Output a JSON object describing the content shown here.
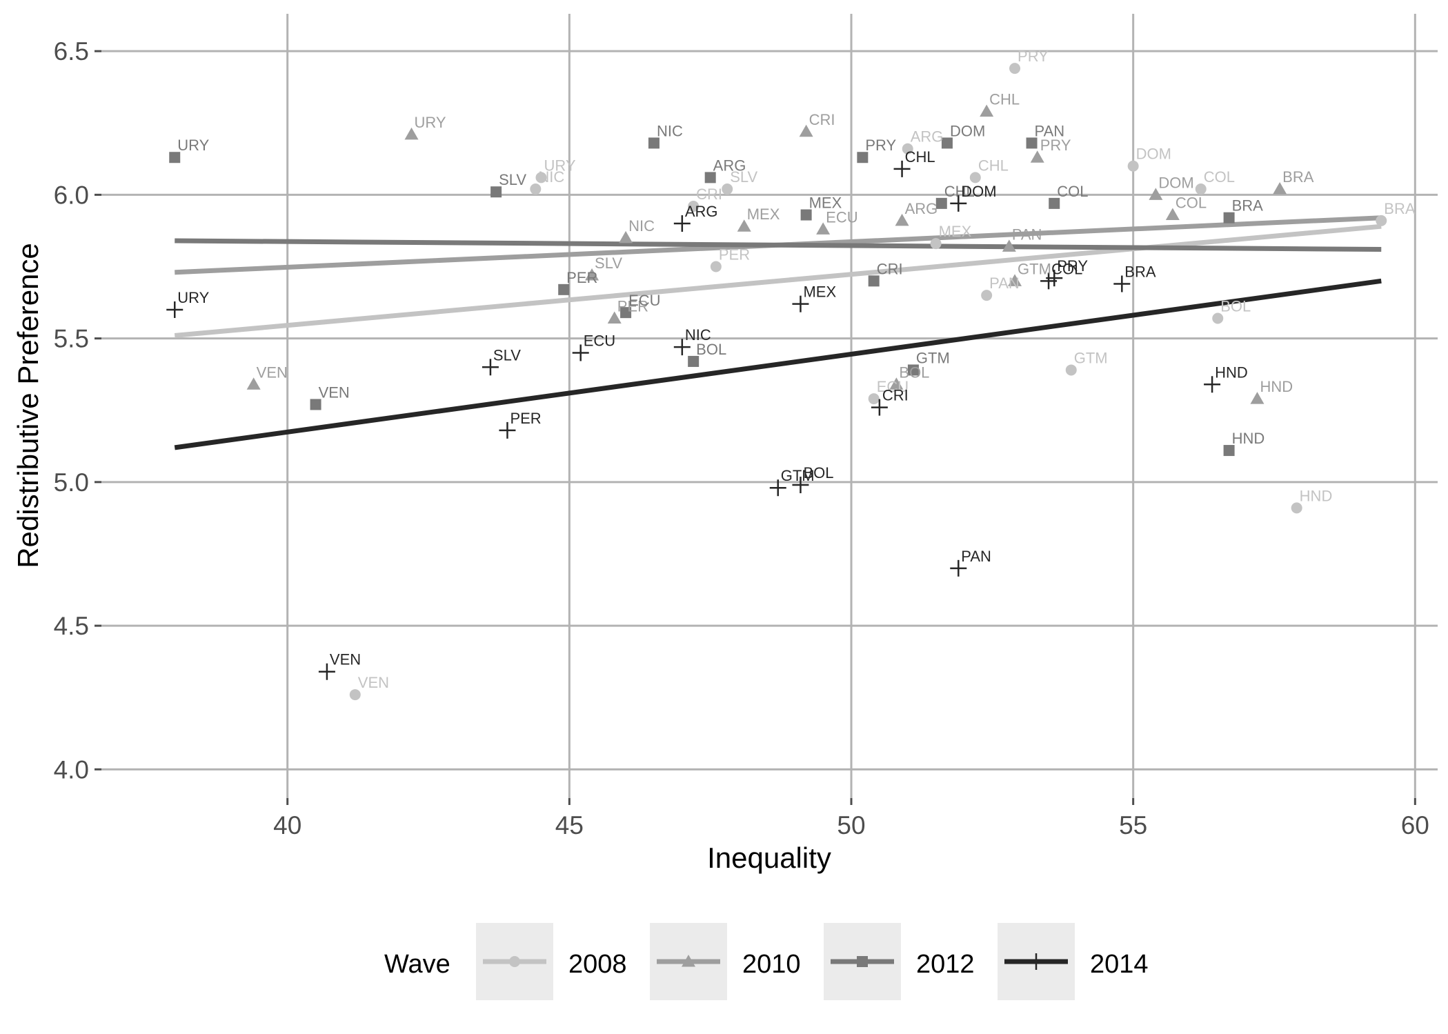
{
  "chart_data": {
    "type": "scatter",
    "xlabel": "Inequality",
    "ylabel": "Redistributive Preference",
    "xlim": [
      36.7,
      60.4
    ],
    "ylim": [
      3.9,
      6.63
    ],
    "x_ticks": [
      40,
      45,
      50,
      55,
      60
    ],
    "y_ticks": [
      4.0,
      4.5,
      5.0,
      5.5,
      6.0,
      6.5
    ],
    "y_tick_labels": [
      "4.0",
      "4.5",
      "5.0",
      "5.5",
      "6.0",
      "6.5"
    ],
    "grid": true,
    "legend": {
      "title": "Wave",
      "position": "bottom"
    },
    "series": [
      {
        "name": "2008",
        "marker": "circle",
        "color": "#c3c3c3",
        "fit_line": [
          [
            38,
            5.51
          ],
          [
            59.4,
            5.89
          ]
        ],
        "points": [
          {
            "label": "PRY",
            "x": 52.9,
            "y": 6.44
          },
          {
            "label": "ARG",
            "x": 51.0,
            "y": 6.16
          },
          {
            "label": "URY",
            "x": 44.5,
            "y": 6.06
          },
          {
            "label": "NIC",
            "x": 44.4,
            "y": 6.02
          },
          {
            "label": "SLV",
            "x": 47.8,
            "y": 6.02
          },
          {
            "label": "CHL",
            "x": 52.2,
            "y": 6.06
          },
          {
            "label": "DOM",
            "x": 55.0,
            "y": 6.1
          },
          {
            "label": "COL",
            "x": 56.2,
            "y": 6.02
          },
          {
            "label": "BRA",
            "x": 59.4,
            "y": 5.91
          },
          {
            "label": "CRI",
            "x": 47.2,
            "y": 5.96
          },
          {
            "label": "MEX",
            "x": 51.5,
            "y": 5.83
          },
          {
            "label": "PAN",
            "x": 52.4,
            "y": 5.65
          },
          {
            "label": "PER",
            "x": 47.6,
            "y": 5.75
          },
          {
            "label": "BOL",
            "x": 56.5,
            "y": 5.57
          },
          {
            "label": "GTM",
            "x": 53.9,
            "y": 5.39
          },
          {
            "label": "ECU",
            "x": 50.4,
            "y": 5.29
          },
          {
            "label": "HND",
            "x": 57.9,
            "y": 4.91
          },
          {
            "label": "VEN",
            "x": 41.2,
            "y": 4.26
          }
        ]
      },
      {
        "name": "2010",
        "marker": "triangle",
        "color": "#9e9e9e",
        "fit_line": [
          [
            38,
            5.73
          ],
          [
            59.4,
            5.92
          ]
        ],
        "points": [
          {
            "label": "URY",
            "x": 42.2,
            "y": 6.21
          },
          {
            "label": "CRI",
            "x": 49.2,
            "y": 6.22
          },
          {
            "label": "CHL",
            "x": 52.4,
            "y": 6.29
          },
          {
            "label": "PRY",
            "x": 53.3,
            "y": 6.13
          },
          {
            "label": "DOM",
            "x": 55.4,
            "y": 6.0
          },
          {
            "label": "BRA",
            "x": 57.6,
            "y": 6.02
          },
          {
            "label": "COL",
            "x": 55.7,
            "y": 5.93
          },
          {
            "label": "NIC",
            "x": 46.0,
            "y": 5.85
          },
          {
            "label": "MEX",
            "x": 48.1,
            "y": 5.89
          },
          {
            "label": "ECU",
            "x": 49.5,
            "y": 5.88
          },
          {
            "label": "ARG",
            "x": 50.9,
            "y": 5.91
          },
          {
            "label": "PAN",
            "x": 52.8,
            "y": 5.82
          },
          {
            "label": "GTM",
            "x": 52.9,
            "y": 5.7
          },
          {
            "label": "SLV",
            "x": 45.4,
            "y": 5.72
          },
          {
            "label": "PER",
            "x": 45.8,
            "y": 5.57
          },
          {
            "label": "BOL",
            "x": 50.8,
            "y": 5.34
          },
          {
            "label": "VEN",
            "x": 39.4,
            "y": 5.34
          },
          {
            "label": "HND",
            "x": 57.2,
            "y": 5.29
          }
        ]
      },
      {
        "name": "2012",
        "marker": "square",
        "color": "#797979",
        "fit_line": [
          [
            38,
            5.84
          ],
          [
            59.4,
            5.81
          ]
        ],
        "points": [
          {
            "label": "URY",
            "x": 38.0,
            "y": 6.13
          },
          {
            "label": "NIC",
            "x": 46.5,
            "y": 6.18
          },
          {
            "label": "PRY",
            "x": 50.2,
            "y": 6.13
          },
          {
            "label": "DOM",
            "x": 51.7,
            "y": 6.18
          },
          {
            "label": "PAN",
            "x": 53.2,
            "y": 6.18
          },
          {
            "label": "ARG",
            "x": 47.5,
            "y": 6.06
          },
          {
            "label": "SLV",
            "x": 43.7,
            "y": 6.01
          },
          {
            "label": "CHL",
            "x": 51.6,
            "y": 5.97
          },
          {
            "label": "COL",
            "x": 53.6,
            "y": 5.97
          },
          {
            "label": "MEX",
            "x": 49.2,
            "y": 5.93
          },
          {
            "label": "BRA",
            "x": 56.7,
            "y": 5.92
          },
          {
            "label": "PER",
            "x": 44.9,
            "y": 5.67
          },
          {
            "label": "CRI",
            "x": 50.4,
            "y": 5.7
          },
          {
            "label": "ECU",
            "x": 46.0,
            "y": 5.59
          },
          {
            "label": "BOL",
            "x": 47.2,
            "y": 5.42
          },
          {
            "label": "GTM",
            "x": 51.1,
            "y": 5.39
          },
          {
            "label": "VEN",
            "x": 40.5,
            "y": 5.27
          },
          {
            "label": "HND",
            "x": 56.7,
            "y": 5.11
          }
        ]
      },
      {
        "name": "2014",
        "marker": "plus",
        "color": "#262626",
        "fit_line": [
          [
            38,
            5.12
          ],
          [
            59.4,
            5.7
          ]
        ],
        "points": [
          {
            "label": "CHL",
            "x": 50.9,
            "y": 6.09
          },
          {
            "label": "DOM",
            "x": 51.9,
            "y": 5.97
          },
          {
            "label": "ARG",
            "x": 47.0,
            "y": 5.9
          },
          {
            "label": "URY",
            "x": 38.0,
            "y": 5.6
          },
          {
            "label": "MEX",
            "x": 49.1,
            "y": 5.62
          },
          {
            "label": "PRY",
            "x": 53.6,
            "y": 5.71
          },
          {
            "label": "COL",
            "x": 53.5,
            "y": 5.7
          },
          {
            "label": "BRA",
            "x": 54.8,
            "y": 5.69
          },
          {
            "label": "NIC",
            "x": 47.0,
            "y": 5.47
          },
          {
            "label": "ECU",
            "x": 45.2,
            "y": 5.45
          },
          {
            "label": "SLV",
            "x": 43.6,
            "y": 5.4
          },
          {
            "label": "HND",
            "x": 56.4,
            "y": 5.34
          },
          {
            "label": "CRI",
            "x": 50.5,
            "y": 5.26
          },
          {
            "label": "PER",
            "x": 43.9,
            "y": 5.18
          },
          {
            "label": "GTM",
            "x": 48.7,
            "y": 4.98
          },
          {
            "label": "BOL",
            "x": 49.1,
            "y": 4.99
          },
          {
            "label": "PAN",
            "x": 51.9,
            "y": 4.7
          },
          {
            "label": "VEN",
            "x": 40.7,
            "y": 4.34
          }
        ]
      }
    ]
  }
}
